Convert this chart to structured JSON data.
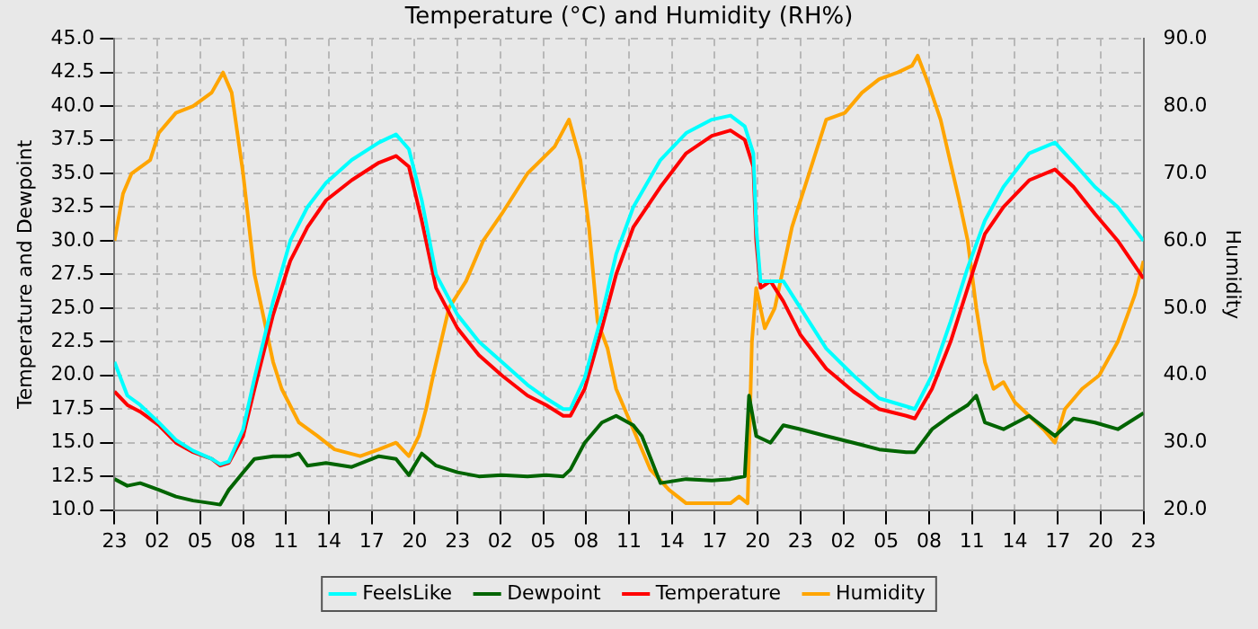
{
  "chart_data": {
    "type": "line",
    "title": "Temperature (°C) and Humidity (RH%)",
    "ylabel": "Temperature and Dewpoint",
    "y2label": "Humidity",
    "xlim": [
      "--01-01T23:00",
      "--01-04T23:00"
    ],
    "xticks": [
      {
        "value": "--01-01T23:00",
        "label": "23"
      },
      {
        "value": "--01-02T02:00",
        "label": "02"
      },
      {
        "value": "--01-02T05:00",
        "label": "05"
      },
      {
        "value": "--01-02T08:00",
        "label": "08"
      },
      {
        "value": "--01-02T11:00",
        "label": "11"
      },
      {
        "value": "--01-02T14:00",
        "label": "14"
      },
      {
        "value": "--01-02T17:00",
        "label": "17"
      },
      {
        "value": "--01-02T20:00",
        "label": "20"
      },
      {
        "value": "--01-02T23:00",
        "label": "23"
      },
      {
        "value": "--01-03T02:00",
        "label": "02"
      },
      {
        "value": "--01-03T05:00",
        "label": "05"
      },
      {
        "value": "--01-03T08:00",
        "label": "08"
      },
      {
        "value": "--01-03T11:00",
        "label": "11"
      },
      {
        "value": "--01-03T14:00",
        "label": "14"
      },
      {
        "value": "--01-03T17:00",
        "label": "17"
      },
      {
        "value": "--01-03T20:00",
        "label": "20"
      },
      {
        "value": "--01-03T23:00",
        "label": "23"
      },
      {
        "value": "--01-04T02:00",
        "label": "02"
      },
      {
        "value": "--01-04T05:00",
        "label": "05"
      },
      {
        "value": "--01-04T08:00",
        "label": "08"
      },
      {
        "value": "--01-04T11:00",
        "label": "11"
      },
      {
        "value": "--01-04T14:00",
        "label": "14"
      },
      {
        "value": "--01-04T17:00",
        "label": "17"
      },
      {
        "value": "--01-04T20:00",
        "label": "20"
      },
      {
        "value": "--01-04T23:00",
        "label": "23"
      }
    ],
    "ylim": [
      10,
      45
    ],
    "yticks": [
      {
        "value": 10,
        "label": "10.0"
      },
      {
        "value": 12.5,
        "label": "12.5"
      },
      {
        "value": 15,
        "label": "15.0"
      },
      {
        "value": 17.5,
        "label": "17.5"
      },
      {
        "value": 20,
        "label": "20.0"
      },
      {
        "value": 22.5,
        "label": "22.5"
      },
      {
        "value": 25,
        "label": "25.0"
      },
      {
        "value": 27.5,
        "label": "27.5"
      },
      {
        "value": 30,
        "label": "30.0"
      },
      {
        "value": 32.5,
        "label": "32.5"
      },
      {
        "value": 35,
        "label": "35.0"
      },
      {
        "value": 37.5,
        "label": "37.5"
      },
      {
        "value": 40,
        "label": "40.0"
      },
      {
        "value": 42.5,
        "label": "42.5"
      },
      {
        "value": 45,
        "label": "45.0"
      }
    ],
    "y2lim": [
      20,
      90
    ],
    "y2ticks": [
      {
        "value": 20,
        "label": "20.0"
      },
      {
        "value": 30,
        "label": "30.0"
      },
      {
        "value": 40,
        "label": "40.0"
      },
      {
        "value": 50,
        "label": "50.0"
      },
      {
        "value": 60,
        "label": "60.0"
      },
      {
        "value": 70,
        "label": "70.0"
      },
      {
        "value": 80,
        "label": "80.0"
      },
      {
        "value": 90,
        "label": "90.0"
      }
    ],
    "grid": true,
    "legend": "bottom",
    "marker": "none",
    "line_style": "solid",
    "series": [
      {
        "name": "FeelsLike",
        "color": "#00ffff",
        "x": [
          "--01-01T23:00",
          "--01-01T23:54",
          "--01-02T00:48",
          "--01-02T02:06",
          "--01-02T03:18",
          "--01-02T04:30",
          "--01-02T05:48",
          "--01-02T06:24",
          "--01-02T07:00",
          "--01-02T08:00",
          "--01-02T08:48",
          "--01-02T10:06",
          "--01-02T11:18",
          "--01-02T12:30",
          "--01-02T13:48",
          "--01-02T15:36",
          "--01-02T17:30",
          "--01-02T18:42",
          "--01-02T19:36",
          "--01-02T20:30",
          "--01-02T21:30",
          "--01-02T23:00",
          "--01-03T00:30",
          "--01-03T02:06",
          "--01-03T03:54",
          "--01-03T05:12",
          "--01-03T06:24",
          "--01-03T06:54",
          "--01-03T07:54",
          "--01-03T09:06",
          "--01-03T10:06",
          "--01-03T11:18",
          "--01-03T13:12",
          "--01-03T15:00",
          "--01-03T16:48",
          "--01-03T18:06",
          "--01-03T19:06",
          "--01-03T19:42",
          "--01-03T19:54",
          "--01-03T20:12",
          "--01-03T20:54",
          "--01-03T21:48",
          "--01-03T23:00",
          "--01-04T00:48",
          "--01-04T02:42",
          "--01-04T04:30",
          "--01-04T06:24",
          "--01-04T07:00",
          "--01-04T08:12",
          "--01-04T09:30",
          "--01-04T10:42",
          "--01-04T11:54",
          "--01-04T13:12",
          "--01-04T15:00",
          "--01-04T16:48",
          "--01-04T18:06",
          "--01-04T19:36",
          "--01-04T21:12",
          "--01-04T23:00"
        ],
        "values": [
          21.0,
          18.5,
          17.8,
          16.5,
          15.2,
          14.4,
          13.8,
          13.4,
          13.6,
          16.0,
          19.8,
          25.5,
          30.0,
          32.5,
          34.3,
          36.0,
          37.3,
          37.9,
          36.8,
          33.0,
          27.5,
          24.5,
          22.5,
          21.0,
          19.3,
          18.3,
          17.5,
          17.5,
          19.8,
          24.5,
          29.0,
          32.5,
          36.0,
          38.0,
          39.0,
          39.3,
          38.5,
          36.5,
          31.0,
          27.0,
          27.0,
          27.0,
          25.0,
          22.0,
          20.0,
          18.3,
          17.7,
          17.5,
          20.0,
          24.0,
          28.0,
          31.5,
          34.0,
          36.5,
          37.3,
          35.8,
          34.0,
          32.5,
          30.0
        ]
      },
      {
        "name": "Dewpoint",
        "color": "#006400",
        "x": [
          "--01-01T23:00",
          "--01-01T23:54",
          "--01-02T00:48",
          "--01-02T02:06",
          "--01-02T03:18",
          "--01-02T04:30",
          "--01-02T05:48",
          "--01-02T06:24",
          "--01-02T07:00",
          "--01-02T08:00",
          "--01-02T08:48",
          "--01-02T10:06",
          "--01-02T11:18",
          "--01-02T11:54",
          "--01-02T12:30",
          "--01-02T13:48",
          "--01-02T15:36",
          "--01-02T17:30",
          "--01-02T18:42",
          "--01-02T19:36",
          "--01-02T20:30",
          "--01-02T21:30",
          "--01-02T23:00",
          "--01-03T00:30",
          "--01-03T02:06",
          "--01-03T03:54",
          "--01-03T05:12",
          "--01-03T06:24",
          "--01-03T06:54",
          "--01-03T07:54",
          "--01-03T09:06",
          "--01-03T10:06",
          "--01-03T11:18",
          "--01-03T11:54",
          "--01-03T13:12",
          "--01-03T15:00",
          "--01-03T16:48",
          "--01-03T18:06",
          "--01-03T19:06",
          "--01-03T19:24",
          "--01-03T19:54",
          "--01-03T20:54",
          "--01-03T21:48",
          "--01-03T23:00",
          "--01-04T00:48",
          "--01-04T02:42",
          "--01-04T04:30",
          "--01-04T06:24",
          "--01-04T07:00",
          "--01-04T08:12",
          "--01-04T09:30",
          "--01-04T10:42",
          "--01-04T11:18",
          "--01-04T11:54",
          "--01-04T13:12",
          "--01-04T15:00",
          "--01-04T16:48",
          "--01-04T18:06",
          "--01-04T19:36",
          "--01-04T21:12",
          "--01-04T23:00"
        ],
        "values": [
          12.3,
          11.8,
          12.0,
          11.5,
          11.0,
          10.7,
          10.5,
          10.4,
          11.5,
          12.8,
          13.8,
          14.0,
          14.0,
          14.2,
          13.3,
          13.5,
          13.2,
          14.0,
          13.8,
          12.6,
          14.2,
          13.3,
          12.8,
          12.5,
          12.6,
          12.5,
          12.6,
          12.5,
          13.0,
          15.0,
          16.5,
          17.0,
          16.3,
          15.5,
          12.0,
          12.3,
          12.2,
          12.3,
          12.5,
          18.5,
          15.5,
          15.0,
          16.3,
          16.0,
          15.5,
          15.0,
          14.5,
          14.3,
          14.3,
          16.0,
          17.0,
          17.8,
          18.5,
          16.5,
          16.0,
          17.0,
          15.5,
          16.8,
          16.5,
          16.0,
          17.2
        ]
      },
      {
        "name": "Temperature",
        "color": "#ff0000",
        "x": [
          "--01-01T23:00",
          "--01-01T23:54",
          "--01-02T00:48",
          "--01-02T02:06",
          "--01-02T03:18",
          "--01-02T04:30",
          "--01-02T05:48",
          "--01-02T06:24",
          "--01-02T07:00",
          "--01-02T08:00",
          "--01-02T08:48",
          "--01-02T10:06",
          "--01-02T11:18",
          "--01-02T12:30",
          "--01-02T13:48",
          "--01-02T15:36",
          "--01-02T17:30",
          "--01-02T18:42",
          "--01-02T19:36",
          "--01-02T20:30",
          "--01-02T21:30",
          "--01-02T23:00",
          "--01-03T00:30",
          "--01-03T02:06",
          "--01-03T03:54",
          "--01-03T05:12",
          "--01-03T06:24",
          "--01-03T06:54",
          "--01-03T07:54",
          "--01-03T09:06",
          "--01-03T10:06",
          "--01-03T11:18",
          "--01-03T13:12",
          "--01-03T15:00",
          "--01-03T16:48",
          "--01-03T18:06",
          "--01-03T19:06",
          "--01-03T19:42",
          "--01-03T19:54",
          "--01-03T20:12",
          "--01-03T20:54",
          "--01-03T21:48",
          "--01-03T23:00",
          "--01-04T00:48",
          "--01-04T02:42",
          "--01-04T04:30",
          "--01-04T06:24",
          "--01-04T07:00",
          "--01-04T08:12",
          "--01-04T09:30",
          "--01-04T10:42",
          "--01-04T11:54",
          "--01-04T13:12",
          "--01-04T15:00",
          "--01-04T16:48",
          "--01-04T18:06",
          "--01-04T19:36",
          "--01-04T21:12",
          "--01-04T23:00"
        ],
        "values": [
          18.8,
          17.8,
          17.3,
          16.3,
          15.0,
          14.3,
          13.8,
          13.3,
          13.5,
          15.5,
          19.0,
          24.5,
          28.5,
          31.0,
          33.0,
          34.5,
          35.8,
          36.3,
          35.5,
          31.5,
          26.5,
          23.5,
          21.5,
          20.0,
          18.5,
          17.8,
          17.0,
          17.0,
          19.0,
          23.5,
          27.5,
          31.0,
          34.0,
          36.5,
          37.8,
          38.2,
          37.5,
          35.5,
          30.0,
          26.5,
          27.0,
          25.5,
          23.0,
          20.5,
          18.8,
          17.5,
          17.0,
          16.8,
          19.0,
          22.5,
          26.5,
          30.5,
          32.5,
          34.5,
          35.3,
          34.0,
          32.0,
          30.0,
          27.2
        ]
      },
      {
        "name": "Humidity",
        "color": "#ffa500",
        "axis": "y2",
        "x": [
          "--01-01T23:00",
          "--01-01T23:36",
          "--01-02T00:12",
          "--01-02T01:30",
          "--01-02T02:06",
          "--01-02T03:18",
          "--01-02T04:30",
          "--01-02T05:48",
          "--01-02T06:36",
          "--01-02T07:12",
          "--01-02T08:00",
          "--01-02T08:48",
          "--01-02T09:30",
          "--01-02T10:06",
          "--01-02T10:42",
          "--01-02T11:54",
          "--01-02T13:12",
          "--01-02T14:24",
          "--01-02T16:12",
          "--01-02T17:30",
          "--01-02T18:42",
          "--01-02T19:36",
          "--01-02T20:18",
          "--01-02T20:48",
          "--01-02T21:18",
          "--01-02T22:24",
          "--01-02T23:36",
          "--01-03T00:48",
          "--01-03T02:06",
          "--01-03T03:54",
          "--01-03T05:48",
          "--01-03T06:48",
          "--01-03T07:36",
          "--01-03T08:12",
          "--01-03T08:48",
          "--01-03T09:30",
          "--01-03T10:06",
          "--01-03T10:42",
          "--01-03T11:18",
          "--01-03T12:30",
          "--01-03T13:48",
          "--01-03T15:00",
          "--01-03T16:48",
          "--01-03T18:06",
          "--01-03T18:42",
          "--01-03T19:18",
          "--01-03T19:36",
          "--01-03T19:54",
          "--01-03T20:30",
          "--01-03T21:12",
          "--01-03T22:24",
          "--01-03T23:36",
          "--01-04T00:48",
          "--01-04T02:06",
          "--01-04T03:18",
          "--01-04T04:30",
          "--01-04T05:48",
          "--01-04T06:48",
          "--01-04T07:12",
          "--01-04T08:00",
          "--01-04T08:48",
          "--01-04T10:06",
          "--01-04T10:42",
          "--01-04T11:18",
          "--01-04T11:54",
          "--01-04T12:30",
          "--01-04T13:12",
          "--01-04T14:00",
          "--01-04T15:00",
          "--01-04T16:00",
          "--01-04T16:48",
          "--01-04T17:30",
          "--01-04T18:42",
          "--01-04T19:54",
          "--01-04T21:12",
          "--01-04T22:24",
          "--01-04T23:00"
        ],
        "values": [
          60,
          67,
          70,
          72,
          76,
          79,
          80,
          82,
          85,
          82,
          70,
          55,
          48,
          42,
          38,
          33,
          31,
          29,
          28,
          29,
          30,
          28,
          31,
          35,
          40,
          50,
          54,
          60,
          64,
          70,
          74,
          78,
          72,
          62,
          48,
          44,
          38,
          35,
          32,
          26,
          23,
          21,
          21,
          21,
          22,
          21,
          45,
          53,
          47,
          50,
          62,
          70,
          78,
          79,
          82,
          84,
          85,
          86,
          87.5,
          83,
          78,
          66,
          60,
          50,
          42,
          38,
          39,
          36,
          34,
          32,
          30,
          35,
          38,
          40,
          45,
          52,
          57
        ]
      }
    ]
  }
}
